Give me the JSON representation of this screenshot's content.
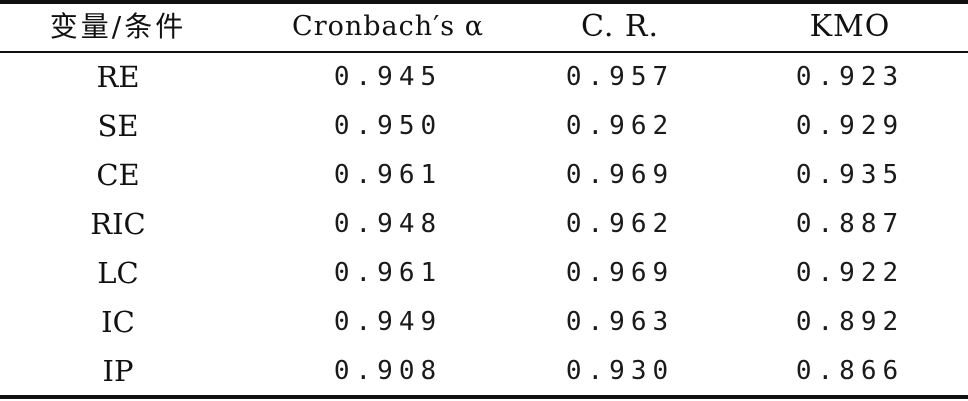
{
  "table": {
    "headers": [
      "变量/条件",
      "Cronbach′s α",
      "C. R.",
      "KMO"
    ],
    "rows": [
      {
        "variable": "RE",
        "alpha": "0.945",
        "cr": "0.957",
        "kmo": "0.923"
      },
      {
        "variable": "SE",
        "alpha": "0.950",
        "cr": "0.962",
        "kmo": "0.929"
      },
      {
        "variable": "CE",
        "alpha": "0.961",
        "cr": "0.969",
        "kmo": "0.935"
      },
      {
        "variable": "RIC",
        "alpha": "0.948",
        "cr": "0.962",
        "kmo": "0.887"
      },
      {
        "variable": "LC",
        "alpha": "0.961",
        "cr": "0.969",
        "kmo": "0.922"
      },
      {
        "variable": "IC",
        "alpha": "0.949",
        "cr": "0.963",
        "kmo": "0.892"
      },
      {
        "variable": "IP",
        "alpha": "0.908",
        "cr": "0.930",
        "kmo": "0.866"
      }
    ]
  }
}
